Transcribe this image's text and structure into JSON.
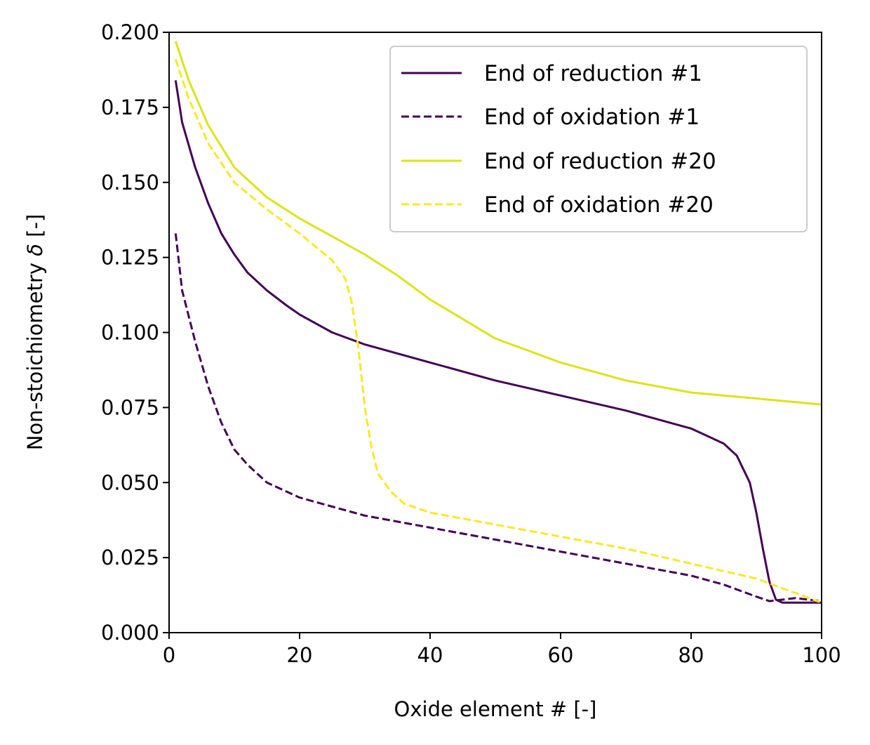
{
  "chart_data": {
    "type": "line",
    "title": "",
    "xlabel": "Oxide element # [-]",
    "ylabel": "Non-stoichiometry δ [-]",
    "ylabel_text": "Non-stoichiometry ",
    "ylabel_symbol": "δ",
    "ylabel_unit": " [-]",
    "xlim": [
      0,
      100
    ],
    "ylim": [
      0,
      0.2
    ],
    "xticks": [
      0,
      20,
      40,
      60,
      80,
      100
    ],
    "xtick_labels": [
      "0",
      "20",
      "40",
      "60",
      "80",
      "100"
    ],
    "yticks": [
      0,
      0.025,
      0.05,
      0.075,
      0.1,
      0.125,
      0.15,
      0.175,
      0.2
    ],
    "ytick_labels": [
      "0.000",
      "0.025",
      "0.050",
      "0.075",
      "0.100",
      "0.125",
      "0.150",
      "0.175",
      "0.200"
    ],
    "grid": false,
    "legend_position": "upper-right",
    "colormap": "viridis",
    "colors": {
      "cycle_1": "#440154",
      "cycle_20": "#fde725"
    },
    "legend": [
      {
        "label": "End of reduction #1",
        "style": "solid",
        "color": "#440154"
      },
      {
        "label": "End of oxidation #1",
        "style": "dashed",
        "color": "#440154"
      },
      {
        "label": "End of reduction #20",
        "style": "solid",
        "color": "#dde318"
      },
      {
        "label": "End of oxidation #20",
        "style": "dashed",
        "color": "#fde725"
      }
    ],
    "series": [
      {
        "name": "End of reduction #1",
        "style": "solid",
        "color": "#440154",
        "x": [
          1,
          2,
          4,
          6,
          8,
          10,
          12,
          15,
          18,
          20,
          25,
          30,
          40,
          50,
          60,
          70,
          80,
          85,
          87,
          89,
          90,
          91,
          92,
          93,
          94,
          96,
          100
        ],
        "y": [
          0.184,
          0.17,
          0.155,
          0.143,
          0.133,
          0.126,
          0.12,
          0.114,
          0.109,
          0.106,
          0.1,
          0.096,
          0.09,
          0.084,
          0.079,
          0.074,
          0.068,
          0.063,
          0.059,
          0.05,
          0.04,
          0.028,
          0.017,
          0.011,
          0.01,
          0.01,
          0.01
        ]
      },
      {
        "name": "End of oxidation #1",
        "style": "dashed",
        "color": "#440154",
        "x": [
          1,
          2,
          4,
          6,
          8,
          10,
          12,
          15,
          20,
          25,
          30,
          40,
          50,
          60,
          70,
          80,
          85,
          90,
          92,
          94,
          96,
          100
        ],
        "y": [
          0.133,
          0.114,
          0.097,
          0.082,
          0.07,
          0.061,
          0.056,
          0.05,
          0.045,
          0.042,
          0.039,
          0.035,
          0.031,
          0.027,
          0.023,
          0.019,
          0.016,
          0.012,
          0.0105,
          0.011,
          0.0115,
          0.0105
        ]
      },
      {
        "name": "End of reduction #20",
        "style": "solid",
        "color": "#dde318",
        "x": [
          1,
          3,
          6,
          10,
          15,
          20,
          25,
          30,
          35,
          40,
          50,
          60,
          70,
          80,
          90,
          100
        ],
        "y": [
          0.197,
          0.184,
          0.169,
          0.155,
          0.145,
          0.138,
          0.132,
          0.126,
          0.119,
          0.111,
          0.098,
          0.09,
          0.084,
          0.08,
          0.078,
          0.076
        ]
      },
      {
        "name": "End of oxidation #20",
        "style": "dashed",
        "color": "#fde725",
        "x": [
          1,
          3,
          6,
          10,
          15,
          20,
          25,
          27,
          28,
          29,
          30,
          31,
          32,
          34,
          36,
          40,
          50,
          60,
          70,
          80,
          90,
          100
        ],
        "y": [
          0.191,
          0.178,
          0.163,
          0.15,
          0.141,
          0.133,
          0.124,
          0.118,
          0.11,
          0.095,
          0.075,
          0.062,
          0.053,
          0.047,
          0.043,
          0.04,
          0.036,
          0.032,
          0.028,
          0.023,
          0.018,
          0.01
        ]
      }
    ]
  }
}
